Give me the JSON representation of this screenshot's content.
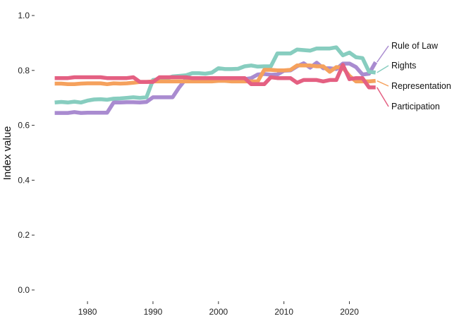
{
  "chart_data": {
    "type": "line",
    "title": "",
    "xlabel": "",
    "ylabel": "Index value",
    "xlim": [
      1974.5,
      2025
    ],
    "ylim": [
      0,
      1
    ],
    "x_ticks": [
      1980,
      1990,
      2000,
      2010,
      2020
    ],
    "x_tick_labels": [
      "1980",
      "1990",
      "2000",
      "2010",
      "2020"
    ],
    "y_ticks": [
      0,
      0.2,
      0.4,
      0.6,
      0.8,
      1.0
    ],
    "y_tick_labels": [
      "0.0",
      "0.2",
      "0.4",
      "0.6",
      "0.8",
      "1.0"
    ],
    "grid": false,
    "legend": "direct labels at line ends (right)",
    "x": [
      1975,
      1976,
      1977,
      1978,
      1979,
      1980,
      1981,
      1982,
      1983,
      1984,
      1985,
      1986,
      1987,
      1988,
      1989,
      1990,
      1991,
      1992,
      1993,
      1994,
      1995,
      1996,
      1997,
      1998,
      1999,
      2000,
      2001,
      2002,
      2003,
      2004,
      2005,
      2006,
      2007,
      2008,
      2009,
      2010,
      2011,
      2012,
      2013,
      2014,
      2015,
      2016,
      2017,
      2018,
      2019,
      2020,
      2021,
      2022,
      2023,
      2024
    ],
    "series": [
      {
        "name": "Rule of Law",
        "color": "#a98bd0",
        "values": [
          0.645,
          0.645,
          0.645,
          0.648,
          0.645,
          0.646,
          0.646,
          0.646,
          0.646,
          0.683,
          0.683,
          0.684,
          0.684,
          0.683,
          0.685,
          0.702,
          0.702,
          0.702,
          0.702,
          0.738,
          0.768,
          0.768,
          0.768,
          0.767,
          0.767,
          0.768,
          0.768,
          0.768,
          0.767,
          0.768,
          0.772,
          0.785,
          0.787,
          0.784,
          0.785,
          0.799,
          0.8,
          0.815,
          0.826,
          0.81,
          0.828,
          0.808,
          0.808,
          0.805,
          0.825,
          0.825,
          0.812,
          0.785,
          0.788,
          0.83
        ]
      },
      {
        "name": "Rights",
        "color": "#87cdbf",
        "values": [
          0.683,
          0.685,
          0.683,
          0.686,
          0.683,
          0.69,
          0.694,
          0.695,
          0.693,
          0.697,
          0.698,
          0.7,
          0.702,
          0.7,
          0.702,
          0.765,
          0.768,
          0.77,
          0.778,
          0.78,
          0.782,
          0.79,
          0.79,
          0.788,
          0.792,
          0.808,
          0.805,
          0.805,
          0.806,
          0.815,
          0.818,
          0.814,
          0.815,
          0.815,
          0.862,
          0.862,
          0.862,
          0.876,
          0.874,
          0.872,
          0.88,
          0.88,
          0.88,
          0.884,
          0.855,
          0.865,
          0.848,
          0.845,
          0.795,
          0.792
        ]
      },
      {
        "name": "Representation",
        "color": "#f5a15d",
        "values": [
          0.752,
          0.752,
          0.75,
          0.75,
          0.752,
          0.753,
          0.753,
          0.753,
          0.75,
          0.753,
          0.752,
          0.753,
          0.755,
          0.758,
          0.758,
          0.76,
          0.76,
          0.76,
          0.76,
          0.76,
          0.76,
          0.76,
          0.76,
          0.76,
          0.76,
          0.762,
          0.762,
          0.76,
          0.76,
          0.76,
          0.76,
          0.76,
          0.802,
          0.802,
          0.8,
          0.8,
          0.802,
          0.818,
          0.818,
          0.818,
          0.815,
          0.815,
          0.795,
          0.812,
          0.81,
          0.78,
          0.76,
          0.76,
          0.76,
          0.762
        ]
      },
      {
        "name": "Participation",
        "color": "#e46082",
        "values": [
          0.772,
          0.772,
          0.772,
          0.775,
          0.775,
          0.775,
          0.775,
          0.775,
          0.772,
          0.772,
          0.772,
          0.772,
          0.775,
          0.758,
          0.758,
          0.758,
          0.775,
          0.775,
          0.775,
          0.775,
          0.775,
          0.772,
          0.772,
          0.772,
          0.772,
          0.772,
          0.772,
          0.772,
          0.772,
          0.772,
          0.75,
          0.75,
          0.75,
          0.775,
          0.772,
          0.772,
          0.772,
          0.755,
          0.765,
          0.765,
          0.765,
          0.76,
          0.765,
          0.765,
          0.82,
          0.768,
          0.772,
          0.772,
          0.738,
          0.738
        ]
      }
    ]
  }
}
